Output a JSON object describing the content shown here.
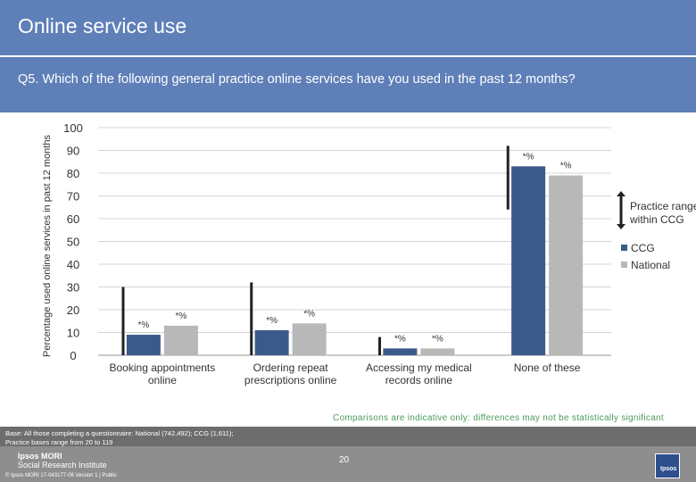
{
  "header": {
    "title": "Online service use"
  },
  "question": "Q5. Which of the following general practice online services have you used in the past 12 months?",
  "colors": {
    "ccg": "#3b5a8a",
    "national": "#b8b8b8",
    "range": "#222222",
    "header": "#5e7fb8"
  },
  "chart_data": {
    "type": "bar",
    "ylabel": "Percentage used online services in past 12 months",
    "ylim": [
      0,
      100
    ],
    "yticks": [
      0,
      10,
      20,
      30,
      40,
      50,
      60,
      70,
      80,
      90,
      100
    ],
    "grid": true,
    "legend_position": "right",
    "categories": [
      "Booking appointments online",
      "Ordering repeat prescriptions online",
      "Accessing my medical records online",
      "None of these"
    ],
    "series": [
      {
        "name": "CCG",
        "values": [
          9,
          11,
          3,
          83
        ],
        "value_labels": [
          "*%",
          "*%",
          "*%",
          "*%"
        ]
      },
      {
        "name": "National",
        "values": [
          13,
          14,
          3,
          79
        ],
        "value_labels": [
          "*%",
          "*%",
          "*%",
          "*%"
        ]
      }
    ],
    "practice_range": [
      [
        0,
        30
      ],
      [
        0,
        32
      ],
      [
        0,
        8
      ],
      [
        64,
        92
      ]
    ],
    "range_legend_label": "Practice range within CCG"
  },
  "category_lines": [
    [
      "Booking appointments",
      "online"
    ],
    [
      "Ordering repeat",
      "prescriptions online"
    ],
    [
      "Accessing my medical",
      "records online"
    ],
    [
      "None of these"
    ]
  ],
  "note": "Comparisons are indicative only: differences may not be statistically significant",
  "footer": {
    "base_line1": "Base: All those completing a questionnaire: National (742,492); CCG (1,611);",
    "base_line2": "Practice bases range from 20 to 119",
    "logo_line1": "Ipsos MORI",
    "logo_line2": "Social Research Institute",
    "copyright": "© Ipsos MORI      17-043177-06 Version 1 | Public",
    "page_number": "20",
    "corner_logo_text": "Ipsos"
  }
}
